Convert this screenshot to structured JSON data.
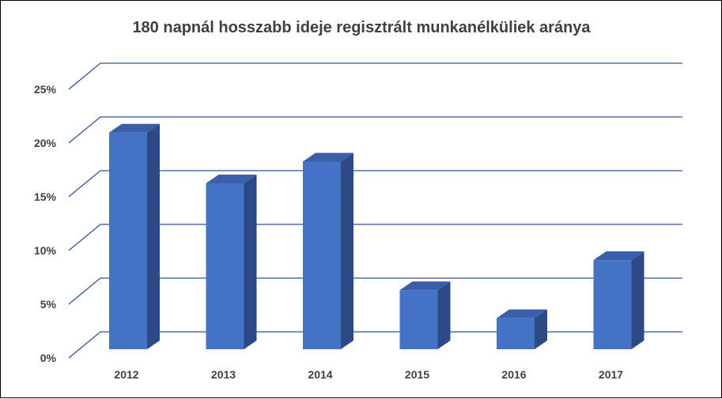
{
  "chart_data": {
    "type": "bar",
    "title": "180 napnál hosszabb ideje regisztrált munkanélküliek aránya",
    "categories": [
      "2012",
      "2013",
      "2014",
      "2015",
      "2016",
      "2017"
    ],
    "values": [
      20.9,
      16.0,
      18.1,
      5.7,
      3.0,
      8.6
    ],
    "y_tick_labels": [
      "0%",
      "5%",
      "10%",
      "15%",
      "20%",
      "25%"
    ],
    "ylim": [
      0,
      25
    ],
    "grid": true,
    "legend": "none",
    "style": "3d-column",
    "colors": {
      "bar_front": "#4472C4",
      "bar_side": "#2E4A86",
      "bar_top": "#3A5FA8",
      "gridline": "#2F5597",
      "text": "#404040"
    }
  }
}
